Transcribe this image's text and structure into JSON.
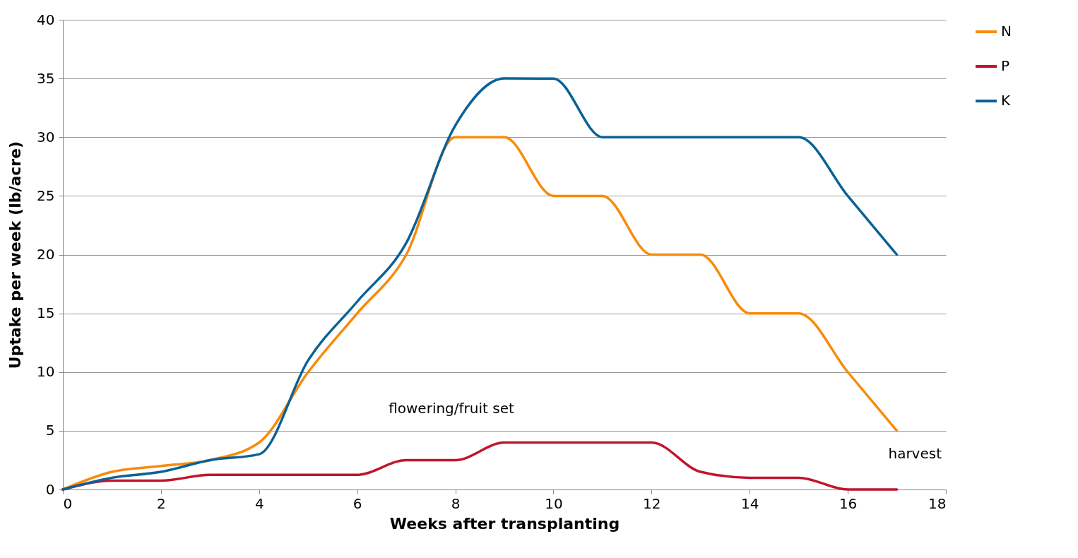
{
  "chart_data": {
    "type": "line",
    "xlabel": "Weeks after transplanting",
    "ylabel": "Uptake per week (lb/acre)",
    "x": [
      0,
      1,
      2,
      3,
      4,
      5,
      6,
      7,
      8,
      9,
      10,
      11,
      12,
      13,
      14,
      15,
      16,
      17
    ],
    "series": [
      {
        "name": "N",
        "color": "#f98a0a",
        "values": [
          0,
          1.5,
          2,
          2.5,
          4,
          10,
          15,
          20,
          30,
          30,
          25,
          25,
          20,
          20,
          15,
          15,
          10,
          5
        ]
      },
      {
        "name": "P",
        "color": "#c0152f",
        "values": [
          0,
          0.75,
          0.75,
          1.25,
          1.25,
          1.25,
          1.25,
          2.5,
          2.5,
          4,
          4,
          4,
          4,
          1.5,
          1,
          1,
          0,
          0
        ]
      },
      {
        "name": "K",
        "color": "#0a6296",
        "values": [
          0,
          1,
          1.5,
          2.5,
          3,
          11,
          16,
          21,
          31,
          35,
          35,
          30,
          30,
          30,
          30,
          30,
          25,
          20
        ]
      }
    ],
    "xlim": [
      0,
      18
    ],
    "xticks": [
      0,
      2,
      4,
      6,
      8,
      10,
      12,
      14,
      16,
      18
    ],
    "ylim": [
      0,
      40
    ],
    "yticks": [
      0,
      5,
      10,
      15,
      20,
      25,
      30,
      35,
      40
    ],
    "grid": "y",
    "legend": "right",
    "marker": "none",
    "line_style": "solid",
    "annotations": [
      "flowering/fruit set",
      "harvest"
    ]
  }
}
